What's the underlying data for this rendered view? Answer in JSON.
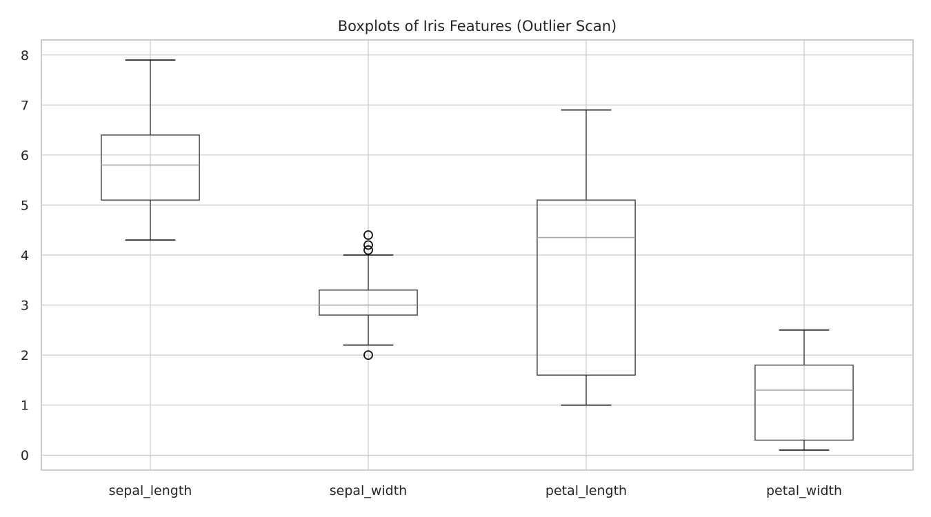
{
  "chart_data": {
    "type": "boxplot",
    "title": "Boxplots of Iris Features (Outlier Scan)",
    "xlabel": "",
    "ylabel": "",
    "ylim": [
      -0.3,
      8.3
    ],
    "yticks": [
      0,
      1,
      2,
      3,
      4,
      5,
      6,
      7,
      8
    ],
    "grid": true,
    "categories": [
      "sepal_length",
      "sepal_width",
      "petal_length",
      "petal_width"
    ],
    "boxes": [
      {
        "category": "sepal_length",
        "whisker_low": 4.3,
        "q1": 5.1,
        "median": 5.8,
        "q3": 6.4,
        "whisker_high": 7.9,
        "outliers": []
      },
      {
        "category": "sepal_width",
        "whisker_low": 2.2,
        "q1": 2.8,
        "median": 3.0,
        "q3": 3.3,
        "whisker_high": 4.0,
        "outliers": [
          4.4,
          4.2,
          4.1,
          2.0
        ]
      },
      {
        "category": "petal_length",
        "whisker_low": 1.0,
        "q1": 1.6,
        "median": 4.35,
        "q3": 5.1,
        "whisker_high": 6.9,
        "outliers": []
      },
      {
        "category": "petal_width",
        "whisker_low": 0.1,
        "q1": 0.3,
        "median": 1.3,
        "q3": 1.8,
        "whisker_high": 2.5,
        "outliers": []
      }
    ],
    "colors": {
      "box": "#3d3d3d",
      "median": "#a6a6a6",
      "grid": "#cccccc",
      "text": "#262626"
    }
  }
}
